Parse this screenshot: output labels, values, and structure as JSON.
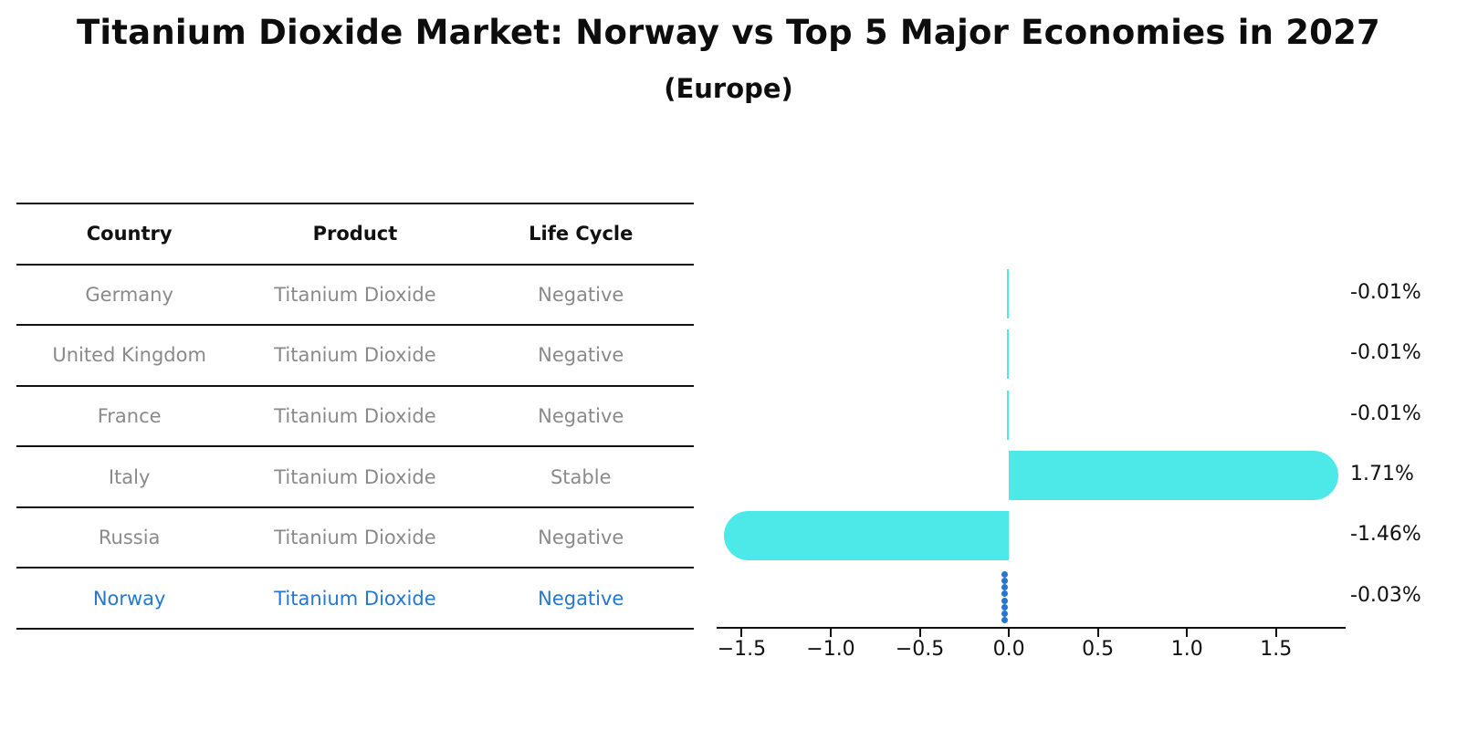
{
  "title": "Titanium Dioxide Market: Norway vs Top 5 Major Economies in 2027",
  "subtitle": "(Europe)",
  "colors": {
    "bar": "#4de8e8",
    "highlight": "#2577cf",
    "row_text": "#8a8a8a",
    "header_text": "#111111",
    "rule": "#111111"
  },
  "table": {
    "headers": [
      "Country",
      "Product",
      "Life Cycle"
    ],
    "rows": [
      {
        "country": "Germany",
        "product": "Titanium Dioxide",
        "life_cycle": "Negative",
        "highlight": false
      },
      {
        "country": "United Kingdom",
        "product": "Titanium Dioxide",
        "life_cycle": "Negative",
        "highlight": false
      },
      {
        "country": "France",
        "product": "Titanium Dioxide",
        "life_cycle": "Negative",
        "highlight": false
      },
      {
        "country": "Italy",
        "product": "Titanium Dioxide",
        "life_cycle": "Stable",
        "highlight": false
      },
      {
        "country": "Russia",
        "product": "Titanium Dioxide",
        "life_cycle": "Negative",
        "highlight": false
      },
      {
        "country": "Norway",
        "product": "Titanium Dioxide",
        "life_cycle": "Negative",
        "highlight": true
      }
    ]
  },
  "chart_data": {
    "type": "bar",
    "orientation": "horizontal",
    "categories": [
      "Germany",
      "United Kingdom",
      "France",
      "Italy",
      "Russia",
      "Norway"
    ],
    "values": [
      -0.01,
      -0.01,
      -0.01,
      1.71,
      -1.46,
      -0.03
    ],
    "value_labels": [
      "-0.01%",
      "-0.01%",
      "-0.01%",
      "1.71%",
      "-1.46%",
      "-0.03%"
    ],
    "highlight_index": 5,
    "title": "",
    "xlabel": "",
    "ylabel": "",
    "xlim": [
      -1.62,
      1.87
    ],
    "x_ticks": [
      -1.5,
      -1.0,
      -0.5,
      0.0,
      0.5,
      1.0,
      1.5
    ],
    "x_tick_labels": [
      "−1.5",
      "−1.0",
      "−0.5",
      "0.0",
      "0.5",
      "1.0",
      "1.5"
    ],
    "grid": false,
    "legend": false
  }
}
